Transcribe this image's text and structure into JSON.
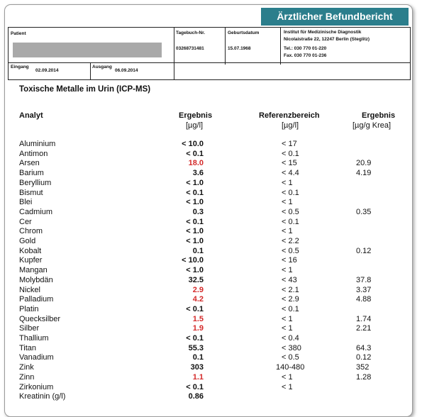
{
  "header": {
    "title": "Ärztlicher Befundbericht"
  },
  "info": {
    "patient_label": "Patient",
    "journal_label": "Tagebuch-Nr.",
    "journal_value": "03268731481",
    "dob_label": "Geburtsdatum",
    "dob_value": "15.07.1968",
    "institute_line1": "Institut für Medizinische Diagnostik",
    "institute_line2": "Nicolaistraße 22, 12247 Berlin (Steglitz)",
    "institute_line3": "Tel.: 030 770 01-220",
    "institute_line4": "Fax. 030 770 01-236",
    "in_label": "Eingang",
    "in_value": "02.09.2014",
    "out_label": "Ausgang",
    "out_value": "06.09.2014"
  },
  "section_title": "Toxische Metalle im Urin (ICP-MS)",
  "columns": {
    "analyt": "Analyt",
    "ergebnis": "Ergebnis",
    "ergebnis_unit": "[µg/l]",
    "ref": "Referenzbereich",
    "ref_unit": "[µg/l]",
    "crea": "Ergebnis",
    "crea_unit": "[µg/g Krea]"
  },
  "rows": [
    {
      "analyt": "Aluminium",
      "ergebnis": "< 10.0",
      "ref": "< 17",
      "crea": "",
      "flag": false
    },
    {
      "analyt": "Antimon",
      "ergebnis": "< 0.1",
      "ref": "< 0.1",
      "crea": "",
      "flag": false
    },
    {
      "analyt": "Arsen",
      "ergebnis": "18.0",
      "ref": "< 15",
      "crea": "20.9",
      "flag": true
    },
    {
      "analyt": "Barium",
      "ergebnis": "3.6",
      "ref": "< 4.4",
      "crea": "4.19",
      "flag": false
    },
    {
      "analyt": "Beryllium",
      "ergebnis": "< 1.0",
      "ref": "< 1",
      "crea": "",
      "flag": false
    },
    {
      "analyt": "Bismut",
      "ergebnis": "< 0.1",
      "ref": "< 0.1",
      "crea": "",
      "flag": false
    },
    {
      "analyt": "Blei",
      "ergebnis": "< 1.0",
      "ref": "< 1",
      "crea": "",
      "flag": false
    },
    {
      "analyt": "Cadmium",
      "ergebnis": "0.3",
      "ref": "< 0.5",
      "crea": "0.35",
      "flag": false
    },
    {
      "analyt": "Cer",
      "ergebnis": "< 0.1",
      "ref": "< 0.1",
      "crea": "",
      "flag": false
    },
    {
      "analyt": "Chrom",
      "ergebnis": "< 1.0",
      "ref": "< 1",
      "crea": "",
      "flag": false
    },
    {
      "analyt": "Gold",
      "ergebnis": "< 1.0",
      "ref": "< 2.2",
      "crea": "",
      "flag": false
    },
    {
      "analyt": "Kobalt",
      "ergebnis": "0.1",
      "ref": "< 0.5",
      "crea": "0.12",
      "flag": false
    },
    {
      "analyt": "Kupfer",
      "ergebnis": "< 10.0",
      "ref": "< 16",
      "crea": "",
      "flag": false
    },
    {
      "analyt": "Mangan",
      "ergebnis": "< 1.0",
      "ref": "< 1",
      "crea": "",
      "flag": false
    },
    {
      "analyt": "Molybdän",
      "ergebnis": "32.5",
      "ref": "< 43",
      "crea": "37.8",
      "flag": false
    },
    {
      "analyt": "Nickel",
      "ergebnis": "2.9",
      "ref": "< 2.1",
      "crea": "3.37",
      "flag": true
    },
    {
      "analyt": "Palladium",
      "ergebnis": "4.2",
      "ref": "< 2.9",
      "crea": "4.88",
      "flag": true
    },
    {
      "analyt": "Platin",
      "ergebnis": "< 0.1",
      "ref": "< 0.1",
      "crea": "",
      "flag": false
    },
    {
      "analyt": "Quecksilber",
      "ergebnis": "1.5",
      "ref": "< 1",
      "crea": "1.74",
      "flag": true
    },
    {
      "analyt": "Silber",
      "ergebnis": "1.9",
      "ref": "< 1",
      "crea": "2.21",
      "flag": true
    },
    {
      "analyt": "Thallium",
      "ergebnis": "< 0.1",
      "ref": "< 0.4",
      "crea": "",
      "flag": false
    },
    {
      "analyt": "Titan",
      "ergebnis": "55.3",
      "ref": "< 380",
      "crea": "64.3",
      "flag": false
    },
    {
      "analyt": "Vanadium",
      "ergebnis": "0.1",
      "ref": "< 0.5",
      "crea": "0.12",
      "flag": false
    },
    {
      "analyt": "Zink",
      "ergebnis": "303",
      "ref": "140-480",
      "crea": "352",
      "flag": false
    },
    {
      "analyt": "Zinn",
      "ergebnis": "1.1",
      "ref": "< 1",
      "crea": "1.28",
      "flag": true
    },
    {
      "analyt": "Zirkonium",
      "ergebnis": "< 0.1",
      "ref": "< 1",
      "crea": "",
      "flag": false
    },
    {
      "analyt": "Kreatinin (g/l)",
      "ergebnis": "0.86",
      "ref": "",
      "crea": "",
      "flag": false
    }
  ],
  "colors": {
    "header_bg": "#2b7e8c",
    "flag": "#d42a2a",
    "redaction": "#a9a9a9"
  }
}
